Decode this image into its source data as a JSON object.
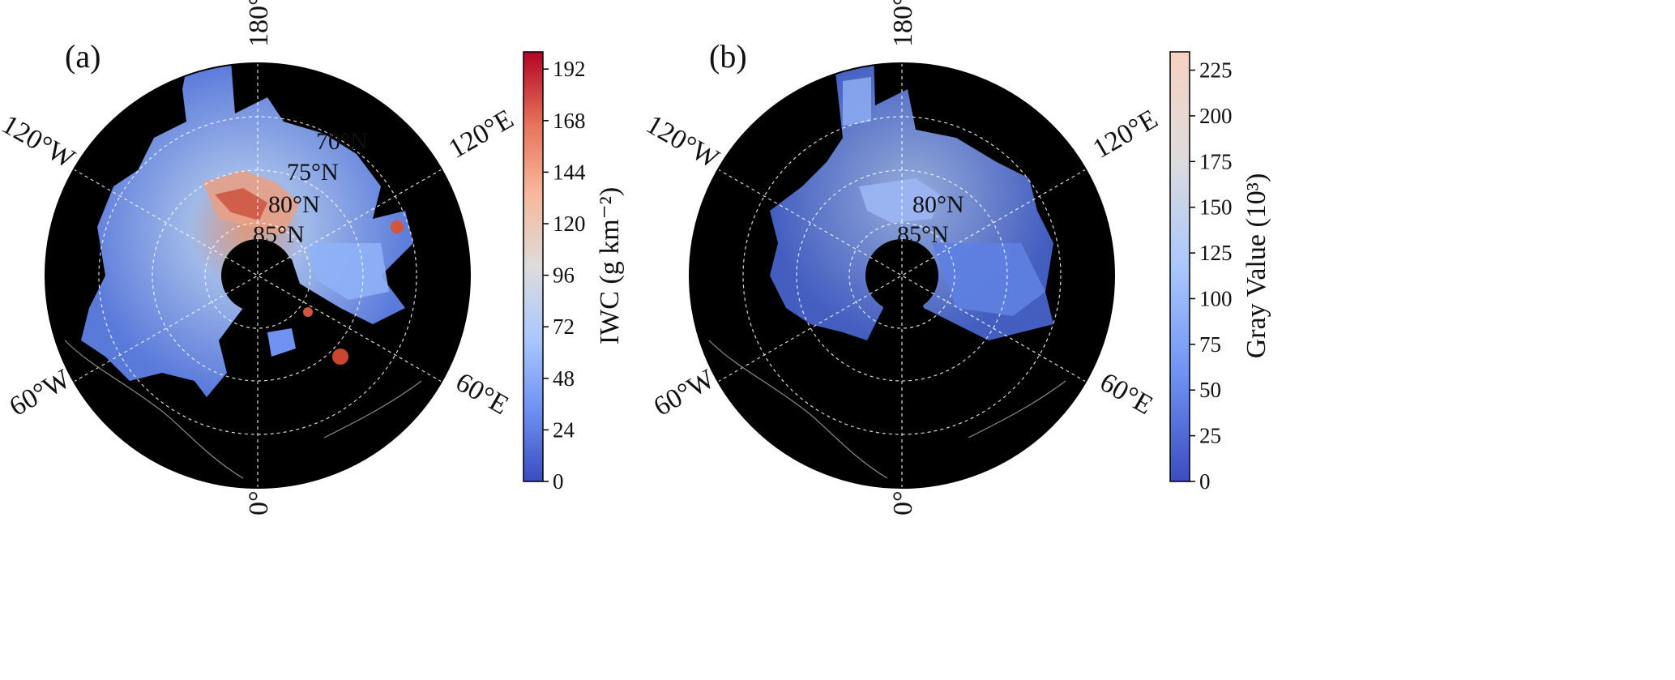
{
  "panels": [
    {
      "id": "a",
      "label": "(a)",
      "lon_labels": {
        "top": "180°",
        "bottom": "0°",
        "upper_left": "120°W",
        "upper_right": "120°E",
        "lower_left": "60°W",
        "lower_right": "60°E"
      },
      "lat_labels": [
        "70°N",
        "75°N",
        "80°N",
        "85°N"
      ],
      "colorbar": {
        "label": "IWC (g km⁻²)",
        "ticks": [
          "0",
          "24",
          "48",
          "72",
          "96",
          "120",
          "144",
          "168",
          "192"
        ],
        "range": [
          0,
          200
        ],
        "colormap": [
          "#3b4cc0",
          "#6f92f3",
          "#aac7fd",
          "#dddcdc",
          "#f7b89c",
          "#e7745b",
          "#b40426"
        ]
      }
    },
    {
      "id": "b",
      "label": "(b)",
      "lon_labels": {
        "top": "180°",
        "bottom": "0°",
        "upper_left": "120°W",
        "upper_right": "120°E",
        "lower_left": "60°W",
        "lower_right": "60°E"
      },
      "lat_labels": [
        "80°N",
        "85°N"
      ],
      "colorbar": {
        "label": "Gray Value (10³)",
        "ticks": [
          "0",
          "25",
          "50",
          "75",
          "100",
          "125",
          "150",
          "175",
          "200",
          "225"
        ],
        "range": [
          0,
          235
        ],
        "colormap": [
          "#3b4cc0",
          "#6f92f3",
          "#aac7fd",
          "#dddcdc",
          "#f6d2c2"
        ]
      }
    }
  ],
  "colors": {
    "background_disk": "#000000",
    "grid": "#ffffff",
    "coastline": "#8a8a8a"
  }
}
